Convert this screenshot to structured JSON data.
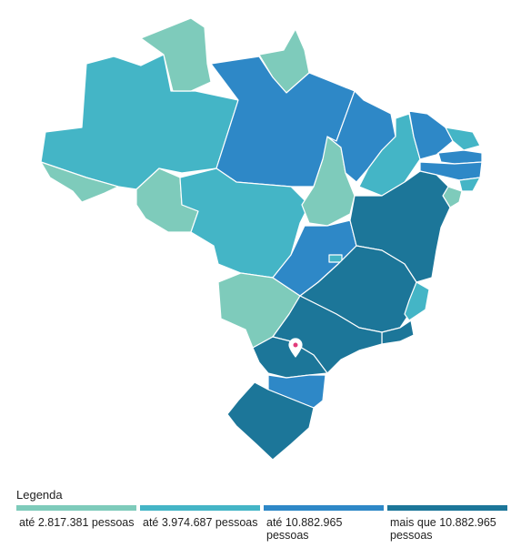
{
  "legend": {
    "title": "Legenda",
    "items": [
      {
        "label": "até 2.817.381 pessoas",
        "color": "#7ecbbb"
      },
      {
        "label": "até 3.974.687 pessoas",
        "color": "#44b5c6"
      },
      {
        "label": "até 10.882.965 pessoas",
        "color": "#2e88c7"
      },
      {
        "label": "mais que 10.882.965 pessoas",
        "color": "#1c7699"
      }
    ]
  },
  "map": {
    "marker": "location-pin-icon",
    "marker_color": "#e23b7a"
  }
}
